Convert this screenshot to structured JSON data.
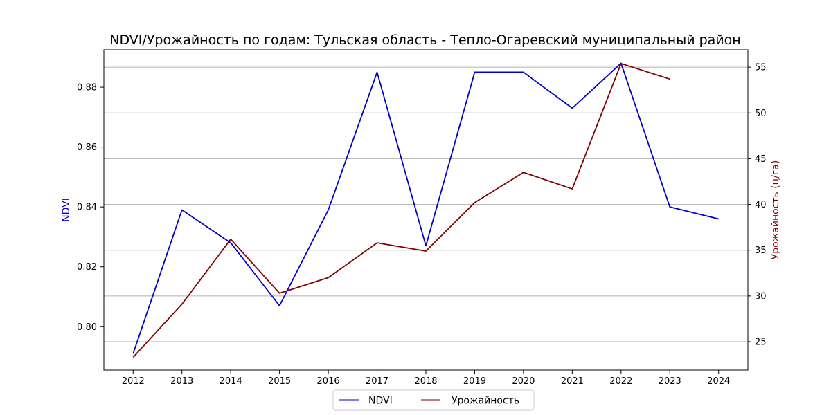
{
  "chart_data": {
    "type": "line",
    "title": "NDVI/Урожайность по годам: Тульская область - Тепло-Огаревский муниципальный район",
    "xlabel": "",
    "x": [
      2012,
      2013,
      2014,
      2015,
      2016,
      2017,
      2018,
      2019,
      2020,
      2021,
      2022,
      2023,
      2024
    ],
    "x_ticks": [
      "2012",
      "2013",
      "2014",
      "2015",
      "2016",
      "2017",
      "2018",
      "2019",
      "2020",
      "2021",
      "2022",
      "2023",
      "2024"
    ],
    "y_left": {
      "label": "NDVI",
      "color": "#0000cc",
      "lim": [
        0.7855,
        0.8925
      ],
      "ticks": [
        0.8,
        0.82,
        0.84,
        0.86,
        0.88
      ],
      "tick_labels": [
        "0.80",
        "0.82",
        "0.84",
        "0.86",
        "0.88"
      ]
    },
    "y_right": {
      "label": "Урожайность (ц/га)",
      "color": "#800000",
      "lim": [
        21.9,
        56.9
      ],
      "ticks": [
        25,
        30,
        35,
        40,
        45,
        50,
        55
      ],
      "tick_labels": [
        "25",
        "30",
        "35",
        "40",
        "45",
        "50",
        "55"
      ]
    },
    "grid": "horizontal, aligned with right axis ticks",
    "legend_placement": "bottom-center",
    "series": [
      {
        "name": "NDVI",
        "axis": "left",
        "color": "#0000cc",
        "x": [
          2012,
          2013,
          2014,
          2015,
          2016,
          2017,
          2018,
          2019,
          2020,
          2021,
          2022,
          2023,
          2024
        ],
        "values": [
          0.791,
          0.839,
          0.828,
          0.807,
          0.839,
          0.885,
          0.827,
          0.885,
          0.885,
          0.873,
          0.888,
          0.84,
          0.836
        ]
      },
      {
        "name": "Урожайность",
        "axis": "right",
        "color": "#800000",
        "x": [
          2012,
          2013,
          2014,
          2015,
          2016,
          2017,
          2018,
          2019,
          2020,
          2021,
          2022,
          2023
        ],
        "values": [
          23.3,
          29.1,
          36.2,
          30.3,
          32.0,
          35.8,
          34.9,
          40.2,
          43.5,
          41.7,
          55.4,
          53.7
        ]
      }
    ]
  }
}
